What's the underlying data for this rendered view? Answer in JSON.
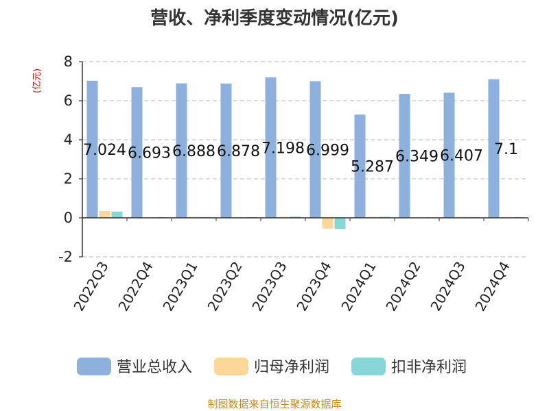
{
  "chart_data": {
    "type": "bar",
    "title": "营收、净利季度变动情况(亿元)",
    "ylabel": "(亿元)",
    "ylim": [
      -2,
      8
    ],
    "yticks": [
      -2,
      0,
      2,
      4,
      6,
      8
    ],
    "grid": true,
    "legend_position": "bottom",
    "categories": [
      "2022Q3",
      "2022Q4",
      "2023Q1",
      "2023Q2",
      "2023Q3",
      "2023Q4",
      "2024Q1",
      "2024Q2",
      "2024Q3",
      "2024Q4"
    ],
    "series": [
      {
        "name": "营业总收入",
        "color": "#8eb0dc",
        "values": [
          7.024,
          6.693,
          6.888,
          6.878,
          7.198,
          6.999,
          5.287,
          6.349,
          6.407,
          7.1
        ],
        "labels": [
          "7.024",
          "6.693",
          "6.888",
          "6.878",
          "7.198",
          "6.999",
          "5.287",
          "6.349",
          "6.407",
          "7.1"
        ]
      },
      {
        "name": "归母净利润",
        "color": "#fdd699",
        "values": [
          0.35,
          0.02,
          0.05,
          0.03,
          0.05,
          -0.55,
          0.05,
          0.01,
          0.05,
          0.04
        ]
      },
      {
        "name": "扣非净利润",
        "color": "#88d6d8",
        "values": [
          0.32,
          0.03,
          0.04,
          0.03,
          0.06,
          -0.57,
          0.05,
          0.02,
          0.04,
          0.03
        ]
      }
    ]
  },
  "source": "制图数据来自恒生聚源数据库"
}
